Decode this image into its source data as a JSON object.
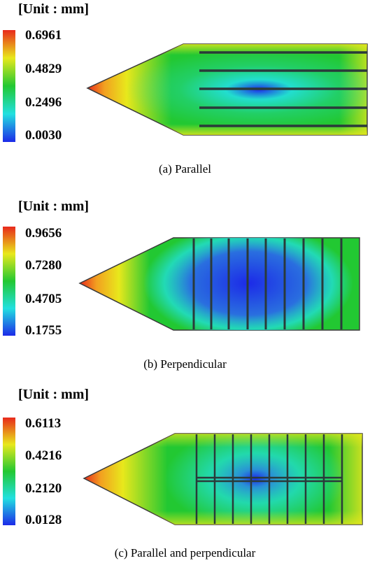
{
  "panels": [
    {
      "unit_label": "[Unit : mm]",
      "scale_ticks": [
        "0.6961",
        "0.4829",
        "0.2496",
        "0.0030"
      ],
      "caption": "(a) Parallel"
    },
    {
      "unit_label": "[Unit : mm]",
      "scale_ticks": [
        "0.9656",
        "0.7280",
        "0.4705",
        "0.1755"
      ],
      "caption": "(b) Perpendicular"
    },
    {
      "unit_label": "[Unit : mm]",
      "scale_ticks": [
        "0.6113",
        "0.4216",
        "0.2120",
        "0.0128"
      ],
      "caption": "(c) Parallel and perpendicular"
    }
  ],
  "colors": {
    "scale_top": "#e8291c",
    "scale_mid_high": "#e8e81c",
    "scale_mid": "#22c832",
    "scale_mid_low": "#22e0e0",
    "scale_bottom": "#1c2ae8",
    "outline": "#3a3a3a"
  }
}
